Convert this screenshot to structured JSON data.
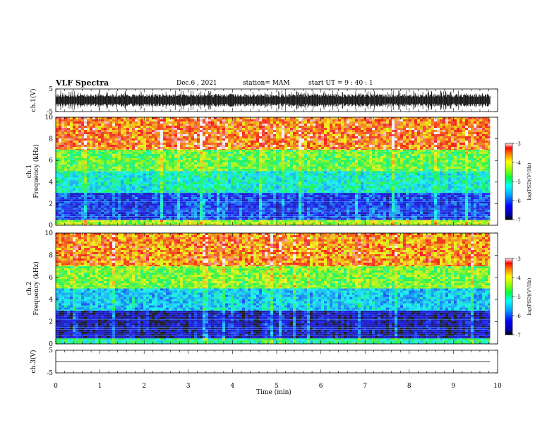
{
  "header": {
    "title": "VLF Spectra",
    "date": "Dec.6 , 2021",
    "station": "station= MAM",
    "start": "start UT = 9 : 40 : 1"
  },
  "chart_data": [
    {
      "type": "line",
      "panel": "waveform-ch1",
      "ylabel": "ch.1(V)",
      "ylim": [
        -5,
        5
      ],
      "yticks": [
        "5",
        "-5"
      ],
      "x_range_min": [
        0,
        9.83
      ],
      "description_values": "dense broadband waveform, amplitude roughly within -3.5..3.5 V"
    },
    {
      "type": "heatmap",
      "panel": "spectrogram-ch1",
      "ylabel": "ch.1 Frequency (kHz)",
      "ylim": [
        0,
        10
      ],
      "yticks": [
        "0",
        "2",
        "4",
        "6",
        "8",
        "10"
      ],
      "x_range_min": [
        0,
        9.83
      ],
      "colorbar": {
        "label": "log(PSD)(V²/Hz)",
        "range": [
          -7,
          -3
        ],
        "ticks": [
          "-3",
          "-4",
          "-5",
          "-6",
          "-7"
        ]
      },
      "bands_khz": [
        {
          "f": [
            0,
            0.5
          ],
          "level": -4.3
        },
        {
          "f": [
            0.5,
            3.0
          ],
          "level": -6.2
        },
        {
          "f": [
            3.0,
            5.0
          ],
          "level": -5.2
        },
        {
          "f": [
            5.0,
            7.0
          ],
          "level": -4.6
        },
        {
          "f": [
            7.0,
            10.0
          ],
          "level": -3.5
        }
      ]
    },
    {
      "type": "heatmap",
      "panel": "spectrogram-ch2",
      "ylabel": "ch.2 Frequency (kHz)",
      "ylim": [
        0,
        10
      ],
      "yticks": [
        "0",
        "2",
        "4",
        "6",
        "8",
        "10"
      ],
      "x_range_min": [
        0,
        9.83
      ],
      "colorbar": {
        "label": "log(PSD)(V²/Hz)",
        "range": [
          -7,
          -3
        ],
        "ticks": [
          "-3",
          "-4",
          "-5",
          "-6",
          "-7"
        ]
      },
      "bands_khz": [
        {
          "f": [
            0,
            0.5
          ],
          "level": -5.0
        },
        {
          "f": [
            0.5,
            3.0
          ],
          "level": -6.6
        },
        {
          "f": [
            3.0,
            5.0
          ],
          "level": -5.5
        },
        {
          "f": [
            5.0,
            7.0
          ],
          "level": -4.5
        },
        {
          "f": [
            7.0,
            10.0
          ],
          "level": -3.6
        }
      ]
    },
    {
      "type": "line",
      "panel": "waveform-ch3",
      "ylabel": "ch.3(V)",
      "ylim": [
        -5,
        5
      ],
      "yticks": [
        "5",
        "-5"
      ],
      "x_range_min": [
        0,
        9.83
      ],
      "values_constant": 0
    }
  ],
  "xaxis": {
    "label": "Time (min)",
    "range": [
      0,
      10
    ],
    "ticks": [
      "0",
      "1",
      "2",
      "3",
      "4",
      "5",
      "6",
      "7",
      "8",
      "9",
      "10"
    ]
  }
}
